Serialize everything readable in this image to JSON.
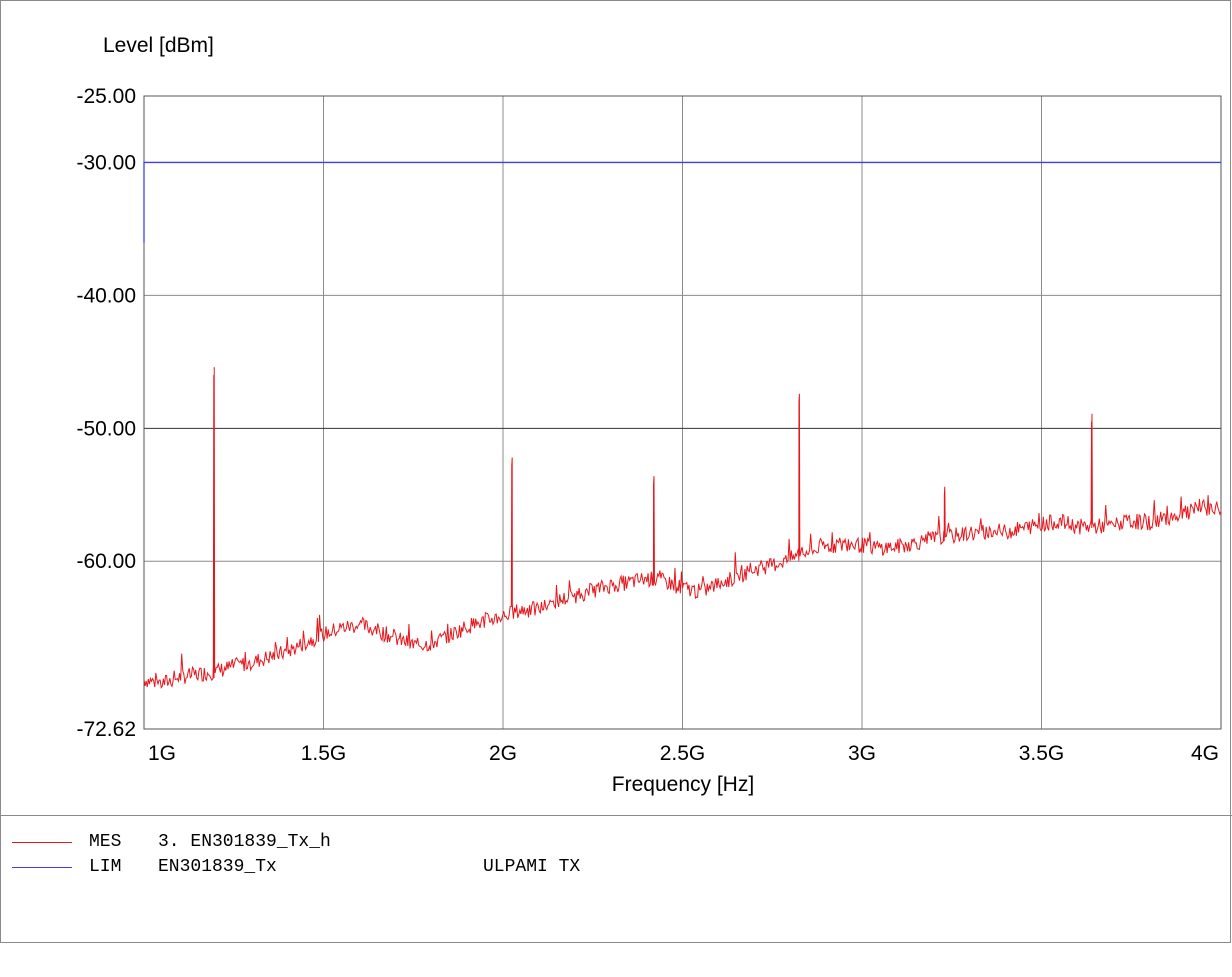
{
  "chart_data": {
    "type": "line",
    "title": "",
    "xlabel": "Frequency [Hz]",
    "ylabel": "Level [dBm]",
    "xlim": [
      1000000000.0,
      4000000000.0
    ],
    "ylim": [
      -72.62,
      -25.0
    ],
    "x_ticks": [
      {
        "value": 1000000000.0,
        "label": "1G"
      },
      {
        "value": 1500000000.0,
        "label": "1.5G"
      },
      {
        "value": 2000000000.0,
        "label": "2G"
      },
      {
        "value": 2500000000.0,
        "label": "2.5G"
      },
      {
        "value": 3000000000.0,
        "label": "3G"
      },
      {
        "value": 3500000000.0,
        "label": "3.5G"
      },
      {
        "value": 4000000000.0,
        "label": "4G"
      }
    ],
    "y_ticks": [
      {
        "value": -25.0,
        "label": "-25.00"
      },
      {
        "value": -30.0,
        "label": "-30.00"
      },
      {
        "value": -40.0,
        "label": "-40.00"
      },
      {
        "value": -50.0,
        "label": "-50.00"
      },
      {
        "value": -60.0,
        "label": "-60.00"
      },
      {
        "value": -72.62,
        "label": "-72.62"
      }
    ],
    "grid": true,
    "series": [
      {
        "name": "MES",
        "color": "#e8161b",
        "kind": "measurement",
        "x": [
          1000000000.0,
          1050000000.0,
          1100000000.0,
          1150000000.0,
          1200000000.0,
          1250000000.0,
          1300000000.0,
          1350000000.0,
          1400000000.0,
          1450000000.0,
          1500000000.0,
          1550000000.0,
          1600000000.0,
          1650000000.0,
          1700000000.0,
          1750000000.0,
          1800000000.0,
          1850000000.0,
          1900000000.0,
          1950000000.0,
          2000000000.0,
          2050000000.0,
          2100000000.0,
          2150000000.0,
          2200000000.0,
          2250000000.0,
          2300000000.0,
          2350000000.0,
          2400000000.0,
          2450000000.0,
          2500000000.0,
          2550000000.0,
          2600000000.0,
          2650000000.0,
          2700000000.0,
          2750000000.0,
          2800000000.0,
          2850000000.0,
          2900000000.0,
          2950000000.0,
          3000000000.0,
          3050000000.0,
          3100000000.0,
          3150000000.0,
          3200000000.0,
          3250000000.0,
          3300000000.0,
          3350000000.0,
          3400000000.0,
          3450000000.0,
          3500000000.0,
          3550000000.0,
          3600000000.0,
          3650000000.0,
          3700000000.0,
          3750000000.0,
          3800000000.0,
          3850000000.0,
          3900000000.0,
          3950000000.0,
          4000000000.0
        ],
        "values": [
          -68.9,
          -69.2,
          -68.7,
          -68.5,
          -68.3,
          -67.9,
          -67.6,
          -67.2,
          -66.8,
          -66.1,
          -65.5,
          -65.0,
          -64.8,
          -65.2,
          -65.8,
          -66.3,
          -66.2,
          -65.6,
          -64.9,
          -64.5,
          -64.1,
          -63.7,
          -63.6,
          -63.0,
          -62.6,
          -62.2,
          -61.8,
          -61.6,
          -61.3,
          -61.5,
          -62.0,
          -62.3,
          -61.7,
          -61.2,
          -60.6,
          -60.3,
          -59.8,
          -59.3,
          -58.9,
          -58.7,
          -58.8,
          -59.0,
          -58.9,
          -58.6,
          -58.3,
          -58.1,
          -57.9,
          -57.8,
          -57.8,
          -57.5,
          -57.2,
          -57.0,
          -57.4,
          -57.4,
          -57.3,
          -57.0,
          -57.1,
          -56.7,
          -56.4,
          -56.0,
          -56.0
        ],
        "peaks": [
          {
            "x": 1195000000.0,
            "y": -46.0
          },
          {
            "x": 2025000000.0,
            "y": -52.8
          },
          {
            "x": 2420000000.0,
            "y": -54.2
          },
          {
            "x": 2825000000.0,
            "y": -48.0
          },
          {
            "x": 3230000000.0,
            "y": -55.0
          },
          {
            "x": 3640000000.0,
            "y": -49.5
          }
        ]
      },
      {
        "name": "LIM",
        "color": "#3f3fe8",
        "kind": "limit",
        "x": [
          1000000000.0,
          1000000000.0,
          4000000000.0
        ],
        "values": [
          -36.0,
          -30.0,
          -30.0
        ]
      }
    ]
  },
  "legend": [
    {
      "code": "MES",
      "name": "3. EN301839_Tx_h",
      "desc": "",
      "color": "#e8161b"
    },
    {
      "code": "LIM",
      "name": "EN301839_Tx",
      "desc": "ULPAMI TX",
      "color": "#3f3fe8"
    }
  ]
}
